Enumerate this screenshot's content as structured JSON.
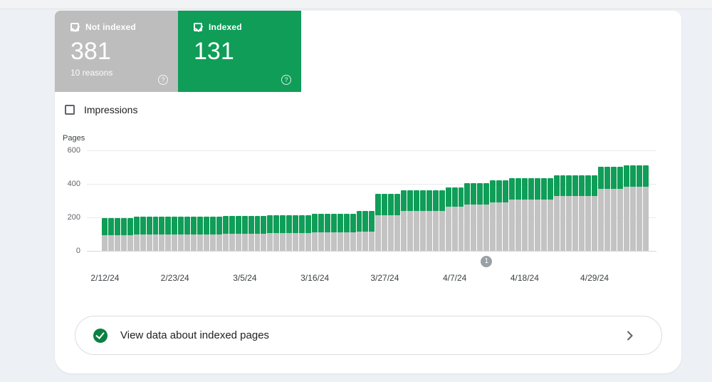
{
  "cards": {
    "not_indexed": {
      "label": "Not indexed",
      "value": "381",
      "sub": "10 reasons",
      "checked": true,
      "color": "#bdbdbd"
    },
    "indexed": {
      "label": "Indexed",
      "value": "131",
      "checked": true,
      "color": "#0f9d58"
    }
  },
  "impressions_toggle": {
    "label": "Impressions",
    "checked": false
  },
  "chart_data": {
    "type": "bar",
    "stacked": true,
    "title": "",
    "ylabel": "Pages",
    "xlabel": "",
    "ylim": [
      0,
      600
    ],
    "y_ticks": [
      0,
      200,
      400,
      600
    ],
    "grid": true,
    "x_tick_labels": [
      "2/12/24",
      "2/23/24",
      "3/5/24",
      "3/16/24",
      "3/27/24",
      "4/7/24",
      "4/18/24",
      "4/29/24"
    ],
    "x_tick_indices": [
      0,
      11,
      22,
      33,
      44,
      55,
      66,
      77
    ],
    "series": [
      {
        "name": "Not indexed",
        "color": "#c3c3c3",
        "values": [
          92,
          92,
          92,
          92,
          92,
          96,
          96,
          96,
          96,
          96,
          96,
          96,
          100,
          100,
          100,
          100,
          100,
          100,
          100,
          104,
          104,
          104,
          104,
          104,
          104,
          104,
          107,
          107,
          107,
          107,
          107,
          107,
          107,
          112,
          112,
          112,
          112,
          112,
          112,
          112,
          115,
          115,
          115,
          212,
          212,
          212,
          212,
          240,
          240,
          240,
          240,
          240,
          240,
          240,
          264,
          264,
          264,
          276,
          276,
          276,
          276,
          289,
          289,
          289,
          306,
          306,
          306,
          306,
          306,
          306,
          306,
          327,
          327,
          327,
          327,
          327,
          327,
          327,
          370,
          370,
          370,
          370,
          381,
          381,
          381,
          381
        ]
      },
      {
        "name": "Indexed",
        "color": "#0f9d58",
        "values": [
          103,
          103,
          103,
          103,
          103,
          109,
          109,
          109,
          109,
          109,
          109,
          109,
          105,
          105,
          105,
          105,
          105,
          105,
          105,
          106,
          106,
          106,
          106,
          106,
          106,
          106,
          107,
          107,
          107,
          107,
          107,
          107,
          107,
          110,
          110,
          110,
          110,
          110,
          110,
          110,
          122,
          122,
          122,
          128,
          128,
          128,
          128,
          122,
          122,
          122,
          122,
          122,
          122,
          122,
          114,
          114,
          114,
          128,
          128,
          128,
          128,
          131,
          131,
          131,
          126,
          126,
          126,
          126,
          126,
          126,
          126,
          125,
          125,
          125,
          125,
          125,
          125,
          125,
          132,
          132,
          132,
          132,
          131,
          131,
          131,
          131
        ]
      }
    ],
    "annotation": {
      "label": "1",
      "index": 60
    }
  },
  "footer_link": {
    "label": "View data about indexed pages"
  },
  "colors": {
    "green": "#0f9d58",
    "gray_card": "#bdbdbd",
    "gray_bar": "#c3c3c3",
    "footer_check": "#0b8043",
    "annotation": "#9aa0a6"
  }
}
